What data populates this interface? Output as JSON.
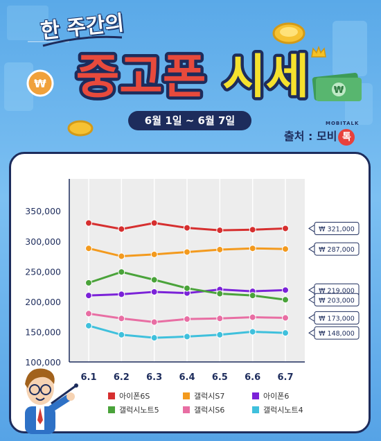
{
  "header": {
    "title_sub": "한 주간의",
    "title_main": "중고폰 시세",
    "date_range": "6월 1일 ~ 6월 7일",
    "source_label": "출처 : 모비",
    "source_brand_char": "톡",
    "source_brand_small": "MOBITALK"
  },
  "colors": {
    "background": "#6fb6ee",
    "navy": "#1d2c5c",
    "title_red": "#e84a3c",
    "title_yellow": "#f5e12e"
  },
  "chart_data": {
    "type": "line",
    "x": [
      "6.1",
      "6.2",
      "6.3",
      "6.4",
      "6.5",
      "6.6",
      "6.7"
    ],
    "yticks": [
      "350,000",
      "300,000",
      "250,000",
      "200,000",
      "150,000",
      "100,000"
    ],
    "ylim": [
      100000,
      350000
    ],
    "grid": "vertical",
    "legend": "bottom",
    "series": [
      {
        "name": "아이폰6S",
        "color": "#d62f2f",
        "values": [
          330000,
          320000,
          330000,
          322000,
          318000,
          319000,
          321000
        ],
        "end_label": "₩ 321,000"
      },
      {
        "name": "갤럭시S7",
        "color": "#f39a1e",
        "values": [
          288000,
          275000,
          278000,
          282000,
          286000,
          288000,
          287000
        ],
        "end_label": "₩ 287,000"
      },
      {
        "name": "아이폰6",
        "color": "#7b22d8",
        "values": [
          210000,
          212000,
          216000,
          214000,
          220000,
          217000,
          219000
        ],
        "end_label": "₩ 219,000"
      },
      {
        "name": "갤럭시노트5",
        "color": "#4aa33a",
        "values": [
          231000,
          249000,
          236000,
          222000,
          213000,
          210000,
          203000
        ],
        "end_label": "₩ 203,000"
      },
      {
        "name": "갤럭시S6",
        "color": "#e86ea3",
        "values": [
          180000,
          172000,
          166000,
          171000,
          172000,
          174000,
          173000
        ],
        "end_label": "₩ 173,000"
      },
      {
        "name": "갤럭시노트4",
        "color": "#3fc0dc",
        "values": [
          160000,
          145000,
          140000,
          142000,
          145000,
          150000,
          148000
        ],
        "end_label": "₩ 148,000"
      }
    ]
  }
}
